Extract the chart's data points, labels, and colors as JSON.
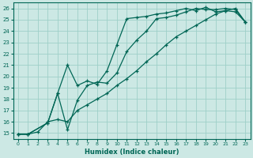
{
  "xlabel": "Humidex (Indice chaleur)",
  "bg_color": "#cce8e4",
  "grid_color": "#9ecfc8",
  "line_color": "#006655",
  "xlim": [
    -0.5,
    23.5
  ],
  "ylim": [
    14.5,
    26.5
  ],
  "xticks": [
    0,
    1,
    2,
    3,
    4,
    5,
    6,
    7,
    8,
    9,
    10,
    11,
    12,
    13,
    14,
    15,
    16,
    17,
    18,
    19,
    20,
    21,
    22,
    23
  ],
  "yticks": [
    15,
    16,
    17,
    18,
    19,
    20,
    21,
    22,
    23,
    24,
    25,
    26
  ],
  "line1_x": [
    0,
    1,
    3,
    4,
    5,
    6,
    7,
    8,
    9,
    10,
    11,
    12,
    13,
    14,
    15,
    16,
    17,
    18,
    19,
    20,
    21,
    22,
    23
  ],
  "line1_y": [
    14.9,
    14.9,
    15.9,
    18.5,
    21.0,
    19.2,
    19.6,
    19.3,
    20.5,
    22.8,
    25.1,
    25.2,
    25.3,
    25.5,
    25.6,
    25.8,
    26.0,
    25.8,
    26.1,
    25.7,
    25.8,
    25.7,
    24.8
  ],
  "line2_x": [
    0,
    1,
    3,
    4,
    5,
    6,
    7,
    8,
    9,
    10,
    11,
    12,
    13,
    14,
    15,
    16,
    17,
    18,
    19,
    20,
    21,
    22,
    23
  ],
  "line2_y": [
    14.9,
    14.9,
    15.9,
    18.5,
    15.3,
    17.9,
    19.2,
    19.5,
    19.4,
    20.3,
    22.2,
    23.2,
    24.0,
    25.1,
    25.2,
    25.4,
    25.7,
    26.0,
    25.9,
    25.9,
    26.0,
    25.9,
    24.8
  ],
  "line3_x": [
    0,
    1,
    2,
    3,
    4,
    5,
    6,
    7,
    8,
    9,
    10,
    11,
    12,
    13,
    14,
    15,
    16,
    17,
    18,
    19,
    20,
    21,
    22,
    23
  ],
  "line3_y": [
    14.9,
    14.9,
    15.1,
    16.0,
    16.2,
    16.0,
    17.0,
    17.5,
    18.0,
    18.5,
    19.2,
    19.8,
    20.5,
    21.3,
    22.0,
    22.8,
    23.5,
    24.0,
    24.5,
    25.0,
    25.5,
    25.8,
    26.0,
    24.8
  ]
}
